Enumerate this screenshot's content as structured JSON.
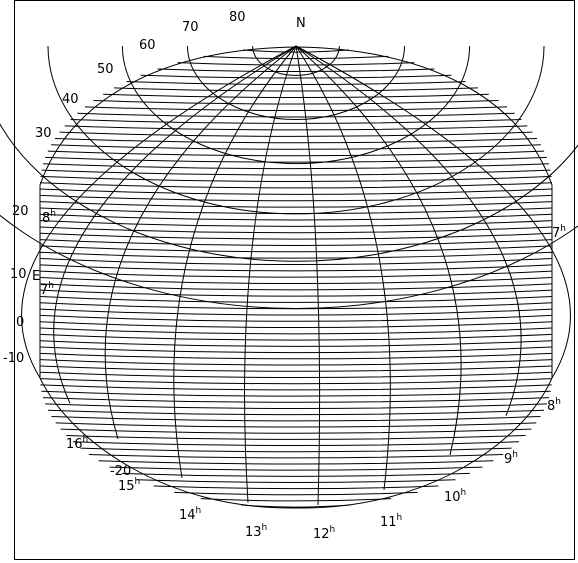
{
  "pole_label": "N",
  "east_label": "E",
  "hour_unit": "h",
  "declination_labels": [
    "80",
    "70",
    "60",
    "50",
    "40",
    "30",
    "20",
    "10",
    "0",
    "-10",
    "-20"
  ],
  "hour_labels": [
    "16",
    "15",
    "14",
    "13",
    "12",
    "11",
    "10",
    "9",
    "8",
    "7",
    "8",
    "7"
  ],
  "line_color": "#000000"
}
